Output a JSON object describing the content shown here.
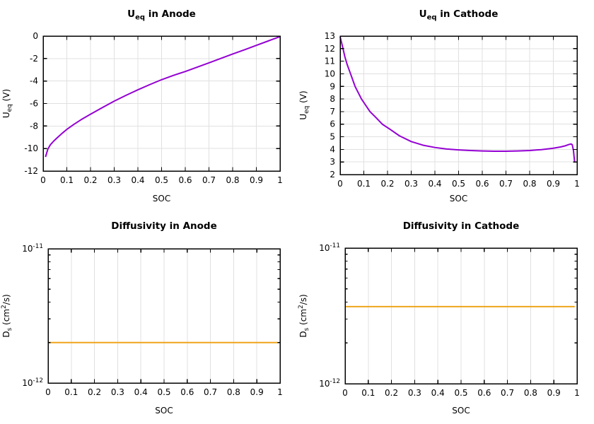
{
  "page": {
    "background": "#ffffff"
  },
  "colors": {
    "purple": "#9400d3",
    "orange": "#efa51b",
    "grid": "#e0e0e0",
    "axis": "#000000"
  },
  "chart_data": [
    {
      "id": "ueq-anode",
      "type": "line",
      "title": [
        {
          "t": "U"
        },
        {
          "t": "eq",
          "sub": true
        },
        {
          "t": " in Anode"
        }
      ],
      "xlabel": "SOC",
      "ylabel": [
        {
          "t": "U"
        },
        {
          "t": "eq",
          "sub": true
        },
        {
          "t": " (V)"
        }
      ],
      "yscale": "linear",
      "xlim": [
        0,
        1
      ],
      "ylim": [
        -12,
        0
      ],
      "grid": true,
      "legend": "none",
      "xticks": {
        "values": [
          0,
          0.1,
          0.2,
          0.3,
          0.4,
          0.5,
          0.6,
          0.7,
          0.8,
          0.9,
          1
        ],
        "labels": [
          "0",
          "0.1",
          "0.2",
          "0.3",
          "0.4",
          "0.5",
          "0.6",
          "0.7",
          "0.8",
          "0.9",
          "1"
        ]
      },
      "yticks": {
        "values": [
          0,
          -2,
          -4,
          -6,
          -8,
          -10,
          -12
        ],
        "labels": [
          "0",
          "-2",
          "-4",
          "-6",
          "-8",
          "-10",
          "-12"
        ]
      },
      "line_color": "#9400d3",
      "series": [
        {
          "name": "Ueq anode",
          "x": [
            0.01,
            0.02,
            0.03,
            0.045,
            0.06,
            0.08,
            0.1,
            0.13,
            0.16,
            0.2,
            0.25,
            0.3,
            0.35,
            0.4,
            0.45,
            0.5,
            0.55,
            0.6,
            0.65,
            0.7,
            0.75,
            0.8,
            0.85,
            0.9,
            0.95,
            1.0
          ],
          "y": [
            -10.75,
            -10.05,
            -9.68,
            -9.33,
            -9.03,
            -8.65,
            -8.3,
            -7.85,
            -7.44,
            -6.95,
            -6.36,
            -5.79,
            -5.27,
            -4.78,
            -4.32,
            -3.88,
            -3.5,
            -3.15,
            -2.77,
            -2.38,
            -1.99,
            -1.6,
            -1.22,
            -0.83,
            -0.44,
            -0.05
          ]
        }
      ]
    },
    {
      "id": "ueq-cathode",
      "type": "line",
      "title": [
        {
          "t": "U"
        },
        {
          "t": "eq",
          "sub": true
        },
        {
          "t": " in Cathode"
        }
      ],
      "xlabel": "SOC",
      "ylabel": [
        {
          "t": "U"
        },
        {
          "t": "eq",
          "sub": true
        },
        {
          "t": " (V)"
        }
      ],
      "yscale": "linear",
      "xlim": [
        0,
        1
      ],
      "ylim": [
        2,
        13
      ],
      "grid": true,
      "legend": "none",
      "xticks": {
        "values": [
          0,
          0.1,
          0.2,
          0.3,
          0.4,
          0.5,
          0.6,
          0.7,
          0.8,
          0.9,
          1
        ],
        "labels": [
          "0",
          "0.1",
          "0.2",
          "0.3",
          "0.4",
          "0.5",
          "0.6",
          "0.7",
          "0.8",
          "0.9",
          "1"
        ]
      },
      "yticks": {
        "values": [
          13,
          12,
          11,
          10,
          9,
          8,
          7,
          6,
          5,
          4,
          3,
          2
        ],
        "labels": [
          "13",
          "12",
          "11",
          "10",
          "9",
          "8",
          "7",
          "6",
          "5",
          "4",
          "3",
          "2"
        ]
      },
      "line_color": "#9400d3",
      "series": [
        {
          "name": "Ueq cathode",
          "x": [
            0,
            0.005,
            0.01,
            0.02,
            0.03,
            0.044,
            0.063,
            0.09,
            0.126,
            0.15,
            0.178,
            0.21,
            0.25,
            0.3,
            0.35,
            0.4,
            0.45,
            0.5,
            0.55,
            0.6,
            0.65,
            0.7,
            0.75,
            0.8,
            0.85,
            0.9,
            0.93,
            0.95,
            0.965,
            0.975,
            0.98,
            0.985,
            0.99
          ],
          "y": [
            12.95,
            12.55,
            12.18,
            11.35,
            10.72,
            10.0,
            9.0,
            8.0,
            7.0,
            6.55,
            6.0,
            5.6,
            5.08,
            4.62,
            4.33,
            4.15,
            4.03,
            3.96,
            3.91,
            3.87,
            3.85,
            3.85,
            3.87,
            3.91,
            3.98,
            4.09,
            4.19,
            4.28,
            4.38,
            4.43,
            4.36,
            3.9,
            2.95
          ]
        }
      ]
    },
    {
      "id": "ds-anode",
      "type": "line",
      "title": [
        {
          "t": "Diffusivity in Anode"
        }
      ],
      "xlabel": "SOC",
      "ylabel": [
        {
          "t": "D"
        },
        {
          "t": "s",
          "sub": true
        },
        {
          "t": " (cm"
        },
        {
          "t": "2",
          "sup": true
        },
        {
          "t": "/s)"
        }
      ],
      "yscale": "log",
      "xlim": [
        0,
        1
      ],
      "ylim": [
        1e-12,
        1e-11
      ],
      "grid": true,
      "legend": "none",
      "constant_value": 2e-12,
      "xticks": {
        "values": [
          0,
          0.1,
          0.2,
          0.3,
          0.4,
          0.5,
          0.6,
          0.7,
          0.8,
          0.9,
          1
        ],
        "labels": [
          "0",
          "0.1",
          "0.2",
          "0.3",
          "0.4",
          "0.5",
          "0.6",
          "0.7",
          "0.8",
          "0.9",
          "1"
        ]
      },
      "yticks": {
        "values": [
          1e-11,
          1e-12
        ],
        "labels": [
          [
            {
              "t": "10"
            },
            {
              "t": "-11",
              "sup": true
            }
          ],
          [
            {
              "t": "10"
            },
            {
              "t": "-12",
              "sup": true
            }
          ]
        ]
      },
      "yminor": [
        2e-12,
        3e-12,
        4e-12,
        5e-12,
        6e-12,
        7e-12,
        8e-12,
        9e-12
      ],
      "line_color": "#efa51b",
      "series": [
        {
          "name": "Ds anode",
          "x": [
            0,
            0.99
          ],
          "y": [
            2e-12,
            2e-12
          ]
        }
      ]
    },
    {
      "id": "ds-cathode",
      "type": "line",
      "title": [
        {
          "t": "Diffusivity in Cathode"
        }
      ],
      "xlabel": "SOC",
      "ylabel": [
        {
          "t": "D"
        },
        {
          "t": "s",
          "sub": true
        },
        {
          "t": " (cm"
        },
        {
          "t": "2",
          "sup": true
        },
        {
          "t": "/s)"
        }
      ],
      "yscale": "log",
      "xlim": [
        0,
        1
      ],
      "ylim": [
        1e-12,
        1e-11
      ],
      "grid": true,
      "legend": "none",
      "constant_value": 3.7e-12,
      "xticks": {
        "values": [
          0,
          0.1,
          0.2,
          0.3,
          0.4,
          0.5,
          0.6,
          0.7,
          0.8,
          0.9,
          1
        ],
        "labels": [
          "0",
          "0.1",
          "0.2",
          "0.3",
          "0.4",
          "0.5",
          "0.6",
          "0.7",
          "0.8",
          "0.9",
          "1"
        ]
      },
      "yticks": {
        "values": [
          1e-11,
          1e-12
        ],
        "labels": [
          [
            {
              "t": "10"
            },
            {
              "t": "-11",
              "sup": true
            }
          ],
          [
            {
              "t": "10"
            },
            {
              "t": "-12",
              "sup": true
            }
          ]
        ]
      },
      "yminor": [
        2e-12,
        3e-12,
        4e-12,
        5e-12,
        6e-12,
        7e-12,
        8e-12,
        9e-12
      ],
      "line_color": "#efa51b",
      "series": [
        {
          "name": "Ds cathode",
          "x": [
            0,
            0.99
          ],
          "y": [
            3.7e-12,
            3.7e-12
          ]
        }
      ]
    }
  ]
}
